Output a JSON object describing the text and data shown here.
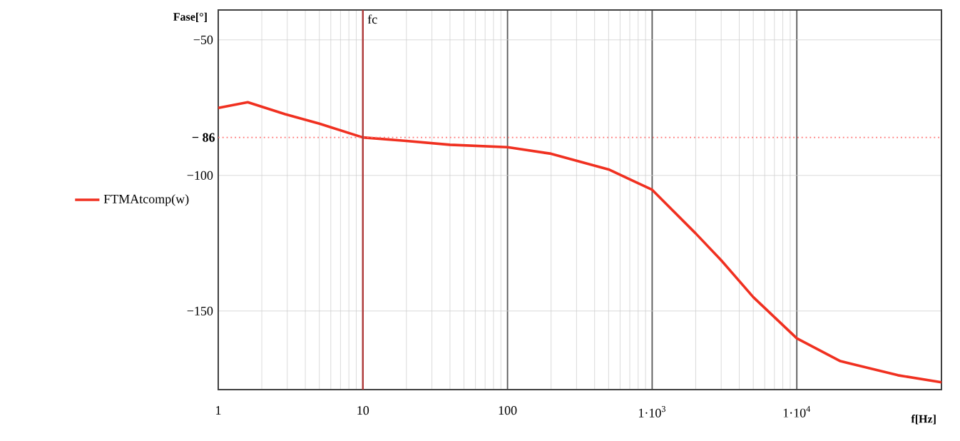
{
  "chart_data": {
    "type": "line",
    "xlabel": "f[Hz]",
    "ylabel": "Fase[°]",
    "log": "x",
    "grid": true,
    "legend": "left",
    "xlim": [
      1,
      100000
    ],
    "ylim": [
      -179,
      -39
    ],
    "xticks": [
      1,
      10,
      100,
      {
        "value": 1000,
        "label": "1·10$^{3}$"
      },
      {
        "value": 10000,
        "label": "1·10$^{4}$"
      }
    ],
    "yticks": [
      {
        "value": -50,
        "label": "−50"
      },
      {
        "value": -100,
        "label": "−100"
      },
      {
        "value": -150,
        "label": "−150"
      }
    ],
    "line_style": "solid",
    "series": [
      {
        "name": "FTMAtcomp(w)",
        "color": "#f03020",
        "x": [
          1,
          1.6,
          2.9,
          5,
          10,
          20,
          40,
          100,
          200,
          500,
          1000,
          2000,
          3000,
          5000,
          10000,
          20000,
          50000,
          100000
        ],
        "values": [
          -75.1,
          -73,
          -77.4,
          -80.9,
          -86,
          -87.3,
          -88.7,
          -89.6,
          -92,
          -97.8,
          -105.3,
          -121.4,
          -131.3,
          -144.9,
          -160.1,
          -168.5,
          -173.7,
          -176.3
        ]
      }
    ],
    "ref_lines": [
      {
        "axis": "y",
        "value": -86,
        "label": "− 86",
        "color": "#ff7070",
        "line_style": "dotted"
      },
      {
        "axis": "x",
        "value": 10,
        "label": "fc",
        "color": "#b03a3a",
        "line_style": "solid"
      }
    ]
  }
}
